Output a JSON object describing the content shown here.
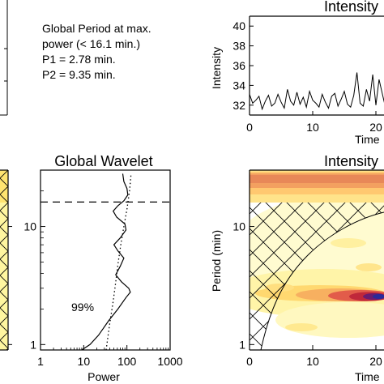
{
  "info": {
    "line1": "Global Period at max.",
    "line2": "power (< 16.1 min.)",
    "line3": "P1 = 2.78 min.",
    "line4": "P2 = 9.35 min."
  },
  "chart_data": [
    {
      "id": "intensity-series",
      "type": "line",
      "title": "Intensity",
      "xlabel": "Time",
      "ylabel": "Intensity",
      "xlim": [
        0,
        24
      ],
      "ylim": [
        31,
        41
      ],
      "xticks": [
        0,
        10,
        20
      ],
      "xtick_labels": [
        "0",
        "10",
        "20"
      ],
      "yticks": [
        32,
        34,
        36,
        38,
        40
      ],
      "x": [
        0,
        0.5,
        1,
        1.5,
        2,
        2.5,
        3,
        3.5,
        4,
        4.5,
        5,
        5.5,
        6,
        6.5,
        7,
        7.5,
        8,
        8.5,
        9,
        9.5,
        10,
        10.5,
        11,
        11.5,
        12,
        12.5,
        13,
        13.5,
        14,
        14.5,
        15,
        15.5,
        16,
        16.5,
        17,
        17.5,
        18,
        18.5,
        19,
        19.5,
        20,
        20.5,
        21,
        21.5,
        22,
        22.5,
        23,
        23.5,
        24
      ],
      "y": [
        33.1,
        32.2,
        32.5,
        32.9,
        31.6,
        32.4,
        33.0,
        31.9,
        32.2,
        33.1,
        32.3,
        31.7,
        33.6,
        32.4,
        32.0,
        33.3,
        32.1,
        32.8,
        31.8,
        33.4,
        32.5,
        32.2,
        31.8,
        33.1,
        32.3,
        31.7,
        32.9,
        33.2,
        31.9,
        32.6,
        33.4,
        32.1,
        31.8,
        33.0,
        35.3,
        32.2,
        31.9,
        33.6,
        32.4,
        35.1,
        32.0,
        34.6,
        33.2,
        31.8,
        33.5,
        32.4,
        32.0,
        33.1,
        32.5
      ]
    },
    {
      "id": "global-wavelet",
      "type": "line",
      "title": "Global Wavelet",
      "xlabel": "Power",
      "x_scale": "log",
      "y_scale": "log",
      "xlim": [
        1,
        1000
      ],
      "ylim": [
        0.9,
        30
      ],
      "xtick_labels": [
        "1",
        "10",
        "100",
        "1000"
      ],
      "ytick_labels": [
        "1",
        "10"
      ],
      "annotation": "99%",
      "dashed_period": 16.1,
      "series": [
        {
          "style": "solid",
          "points": [
            [
              9,
              0.9
            ],
            [
              14,
              1.0
            ],
            [
              22,
              1.2
            ],
            [
              38,
              1.6
            ],
            [
              62,
              2.0
            ],
            [
              95,
              2.5
            ],
            [
              120,
              2.78
            ],
            [
              110,
              3.0
            ],
            [
              75,
              3.4
            ],
            [
              55,
              3.9
            ],
            [
              70,
              4.6
            ],
            [
              85,
              5.4
            ],
            [
              62,
              6.2
            ],
            [
              50,
              7.0
            ],
            [
              70,
              8.0
            ],
            [
              95,
              9.35
            ],
            [
              90,
              10.5
            ],
            [
              58,
              12.0
            ],
            [
              48,
              13.5
            ],
            [
              62,
              15.0
            ],
            [
              85,
              16.5
            ],
            [
              105,
              18.5
            ],
            [
              100,
              21
            ],
            [
              85,
              24
            ],
            [
              80,
              28
            ]
          ]
        },
        {
          "style": "dotted",
          "points": [
            [
              33,
              0.9
            ],
            [
              40,
              1.5
            ],
            [
              47,
              2.2
            ],
            [
              54,
              3.2
            ],
            [
              62,
              4.8
            ],
            [
              72,
              7
            ],
            [
              85,
              10
            ],
            [
              100,
              14
            ],
            [
              115,
              20
            ],
            [
              125,
              28
            ]
          ]
        }
      ]
    },
    {
      "id": "intensity-wavelet",
      "type": "heatmap",
      "title": "Intensity",
      "xlabel": "Time",
      "ylabel": "Period (min)",
      "y_scale": "log",
      "xlim": [
        0,
        24
      ],
      "ylim": [
        0.9,
        30
      ],
      "xtick_labels": [
        "0",
        "10",
        "20"
      ],
      "ytick_labels": [
        "1",
        "10"
      ]
    },
    {
      "id": "left-panel-fragment",
      "type": "heatmap",
      "ytick_labels": [
        "10",
        "1"
      ]
    }
  ]
}
